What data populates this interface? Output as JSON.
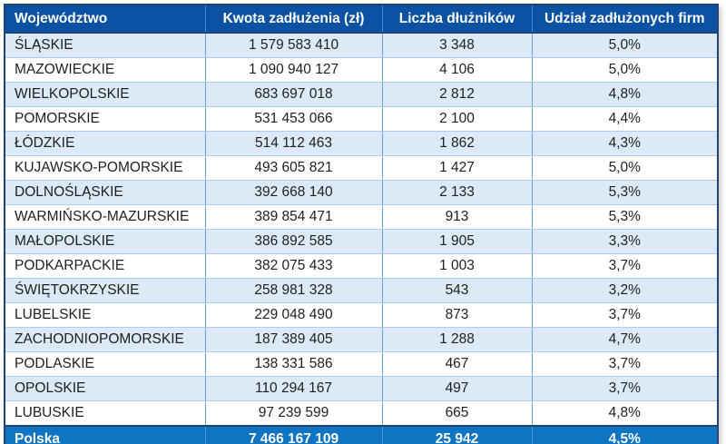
{
  "chart_data": {
    "type": "table",
    "columns": [
      {
        "key": "wojewodztwo",
        "label": "Województwo",
        "align": "left"
      },
      {
        "key": "kwota",
        "label": "Kwota zadłużenia (zł)",
        "align": "center"
      },
      {
        "key": "liczba",
        "label": "Liczba dłużników",
        "align": "center"
      },
      {
        "key": "udzial",
        "label": "Udział zadłużonych firm",
        "align": "center"
      }
    ],
    "rows": [
      [
        "ŚLĄSKIE",
        "1 579 583 410",
        "3 348",
        "5,0%"
      ],
      [
        "MAZOWIECKIE",
        "1 090 940 127",
        "4 106",
        "5,0%"
      ],
      [
        "WIELKOPOLSKIE",
        "683 697 018",
        "2 812",
        "4,8%"
      ],
      [
        "POMORSKIE",
        "531 453 066",
        "2 100",
        "4,4%"
      ],
      [
        "ŁÓDZKIE",
        "514 112 463",
        "1 862",
        "4,3%"
      ],
      [
        "KUJAWSKO-POMORSKIE",
        "493 605 821",
        "1 427",
        "5,0%"
      ],
      [
        "DOLNOŚLĄSKIE",
        "392 668 140",
        "2 133",
        "5,3%"
      ],
      [
        "WARMIŃSKO-MAZURSKIE",
        "389 854 471",
        "913",
        "5,3%"
      ],
      [
        "MAŁOPOLSKIE",
        "386 892 585",
        "1 905",
        "3,3%"
      ],
      [
        "PODKARPACKIE",
        "382 075 433",
        "1 003",
        "3,7%"
      ],
      [
        "ŚWIĘTOKRZYSKIE",
        "258 981 328",
        "543",
        "3,2%"
      ],
      [
        "LUBELSKIE",
        "229 048 490",
        "873",
        "3,7%"
      ],
      [
        "ZACHODNIOPOMORSKIE",
        "187 389 405",
        "1 288",
        "4,7%"
      ],
      [
        "PODLASKIE",
        "138 331 586",
        "467",
        "3,7%"
      ],
      [
        "OPOLSKIE",
        "110 294 167",
        "497",
        "3,7%"
      ],
      [
        "LUBUSKIE",
        "97 239 599",
        "665",
        "4,8%"
      ]
    ],
    "footer": [
      "Polska",
      "7 466 167 109",
      "25 942",
      "4,5%"
    ]
  },
  "colors": {
    "header_bg": "#0B52A2",
    "footer_bg": "#0F74C2",
    "row_stripe": "#DCE9F6",
    "row_white": "#FFFFFF",
    "outer_border": "#24426F",
    "grid_vertical": "#6FA0D6",
    "grid_horizontal": "#ACCDEB",
    "header_text": "#FFFFFF",
    "body_text": "#1F1F1F"
  }
}
